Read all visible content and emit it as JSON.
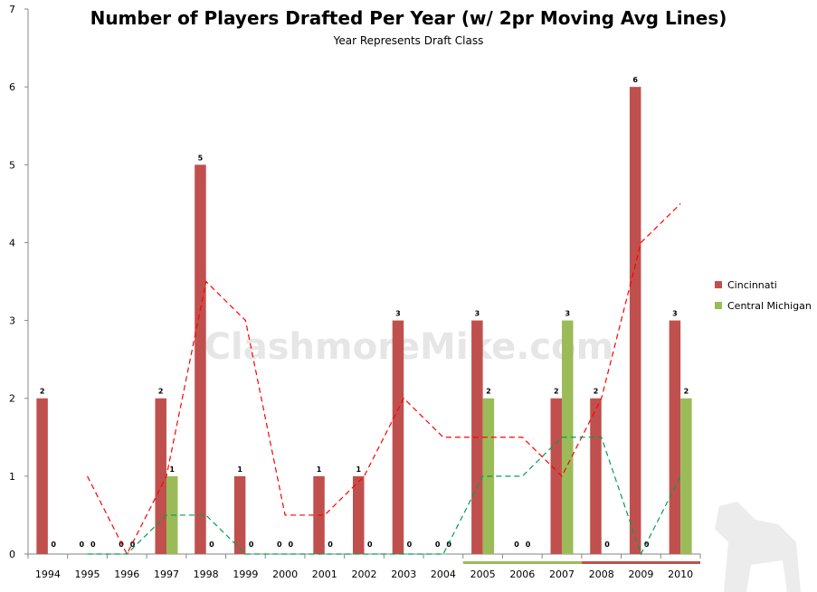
{
  "chart_data": {
    "type": "bar",
    "title": "Number of Players Drafted Per Year (w/ 2pr Moving Avg Lines)",
    "subtitle": "Year Represents Draft Class",
    "watermark": "ClashmoreMike.com",
    "categories": [
      "1994",
      "1995",
      "1996",
      "1997",
      "1998",
      "1999",
      "2000",
      "2001",
      "2002",
      "2003",
      "2004",
      "2005",
      "2006",
      "2007",
      "2008",
      "2009",
      "2010"
    ],
    "ylim": [
      0,
      7
    ],
    "yticks": [
      0,
      1,
      2,
      3,
      4,
      5,
      6,
      7
    ],
    "legend_position": "right",
    "series": [
      {
        "name": "Cincinnati",
        "color": "#C0504D",
        "values": [
          2,
          0,
          0,
          2,
          5,
          1,
          0,
          1,
          1,
          3,
          0,
          3,
          0,
          2,
          2,
          6,
          3
        ]
      },
      {
        "name": "Central Michigan",
        "color": "#9BBB59",
        "values": [
          0,
          0,
          0,
          1,
          0,
          0,
          0,
          0,
          0,
          0,
          0,
          2,
          0,
          3,
          0,
          0,
          2
        ]
      }
    ],
    "moving_avg_period": 2,
    "highlights": [
      {
        "from": "2005",
        "to": "2007",
        "color": "#9BBB59"
      },
      {
        "from": "2008",
        "to": "2010",
        "color": "#C0504D"
      }
    ]
  }
}
